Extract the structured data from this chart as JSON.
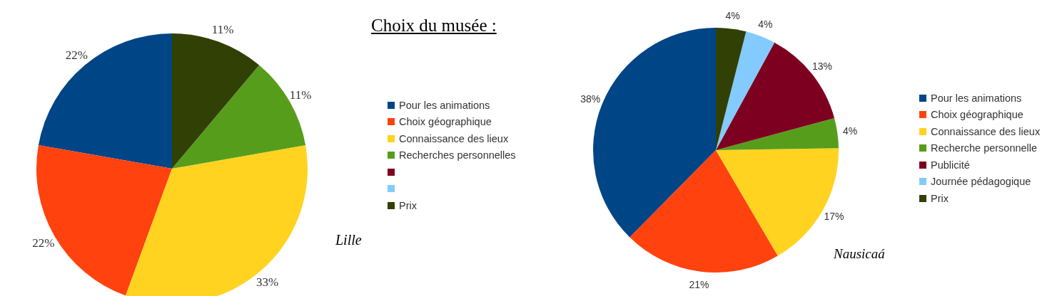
{
  "chart_data": [
    {
      "type": "pie",
      "title": "Choix du musée :",
      "annotations": [
        "Lille"
      ],
      "legend": "right",
      "categories": [
        "Pour les animations",
        "Choix géographique",
        "Connaissance des lieux",
        "Recherches personnelles",
        null,
        null,
        "Prix"
      ],
      "values": [
        22,
        22,
        33,
        11,
        0,
        0,
        11
      ],
      "value_labels": [
        "22%",
        "22%",
        "33%",
        "11%",
        null,
        null,
        "11%"
      ],
      "colors": [
        "#004586",
        "#ff420e",
        "#ffd320",
        "#579d1c",
        "#7e0021",
        "#83caff",
        "#314004"
      ]
    },
    {
      "type": "pie",
      "annotations": [
        "Nausicaá"
      ],
      "legend": "right",
      "categories": [
        "Pour les animations",
        "Choix géographique",
        "Connaissance des lieux",
        "Recherche personnelle",
        "Publicité",
        "Journée pédagogique",
        "Prix"
      ],
      "values": [
        38,
        21,
        17,
        4,
        13,
        4,
        4
      ],
      "value_labels": [
        "38%",
        "21%",
        "17%",
        "4%",
        "13%",
        "4%",
        "4%"
      ],
      "colors": [
        "#004586",
        "#ff420e",
        "#ffd320",
        "#579d1c",
        "#7e0021",
        "#83caff",
        "#314004"
      ]
    }
  ]
}
